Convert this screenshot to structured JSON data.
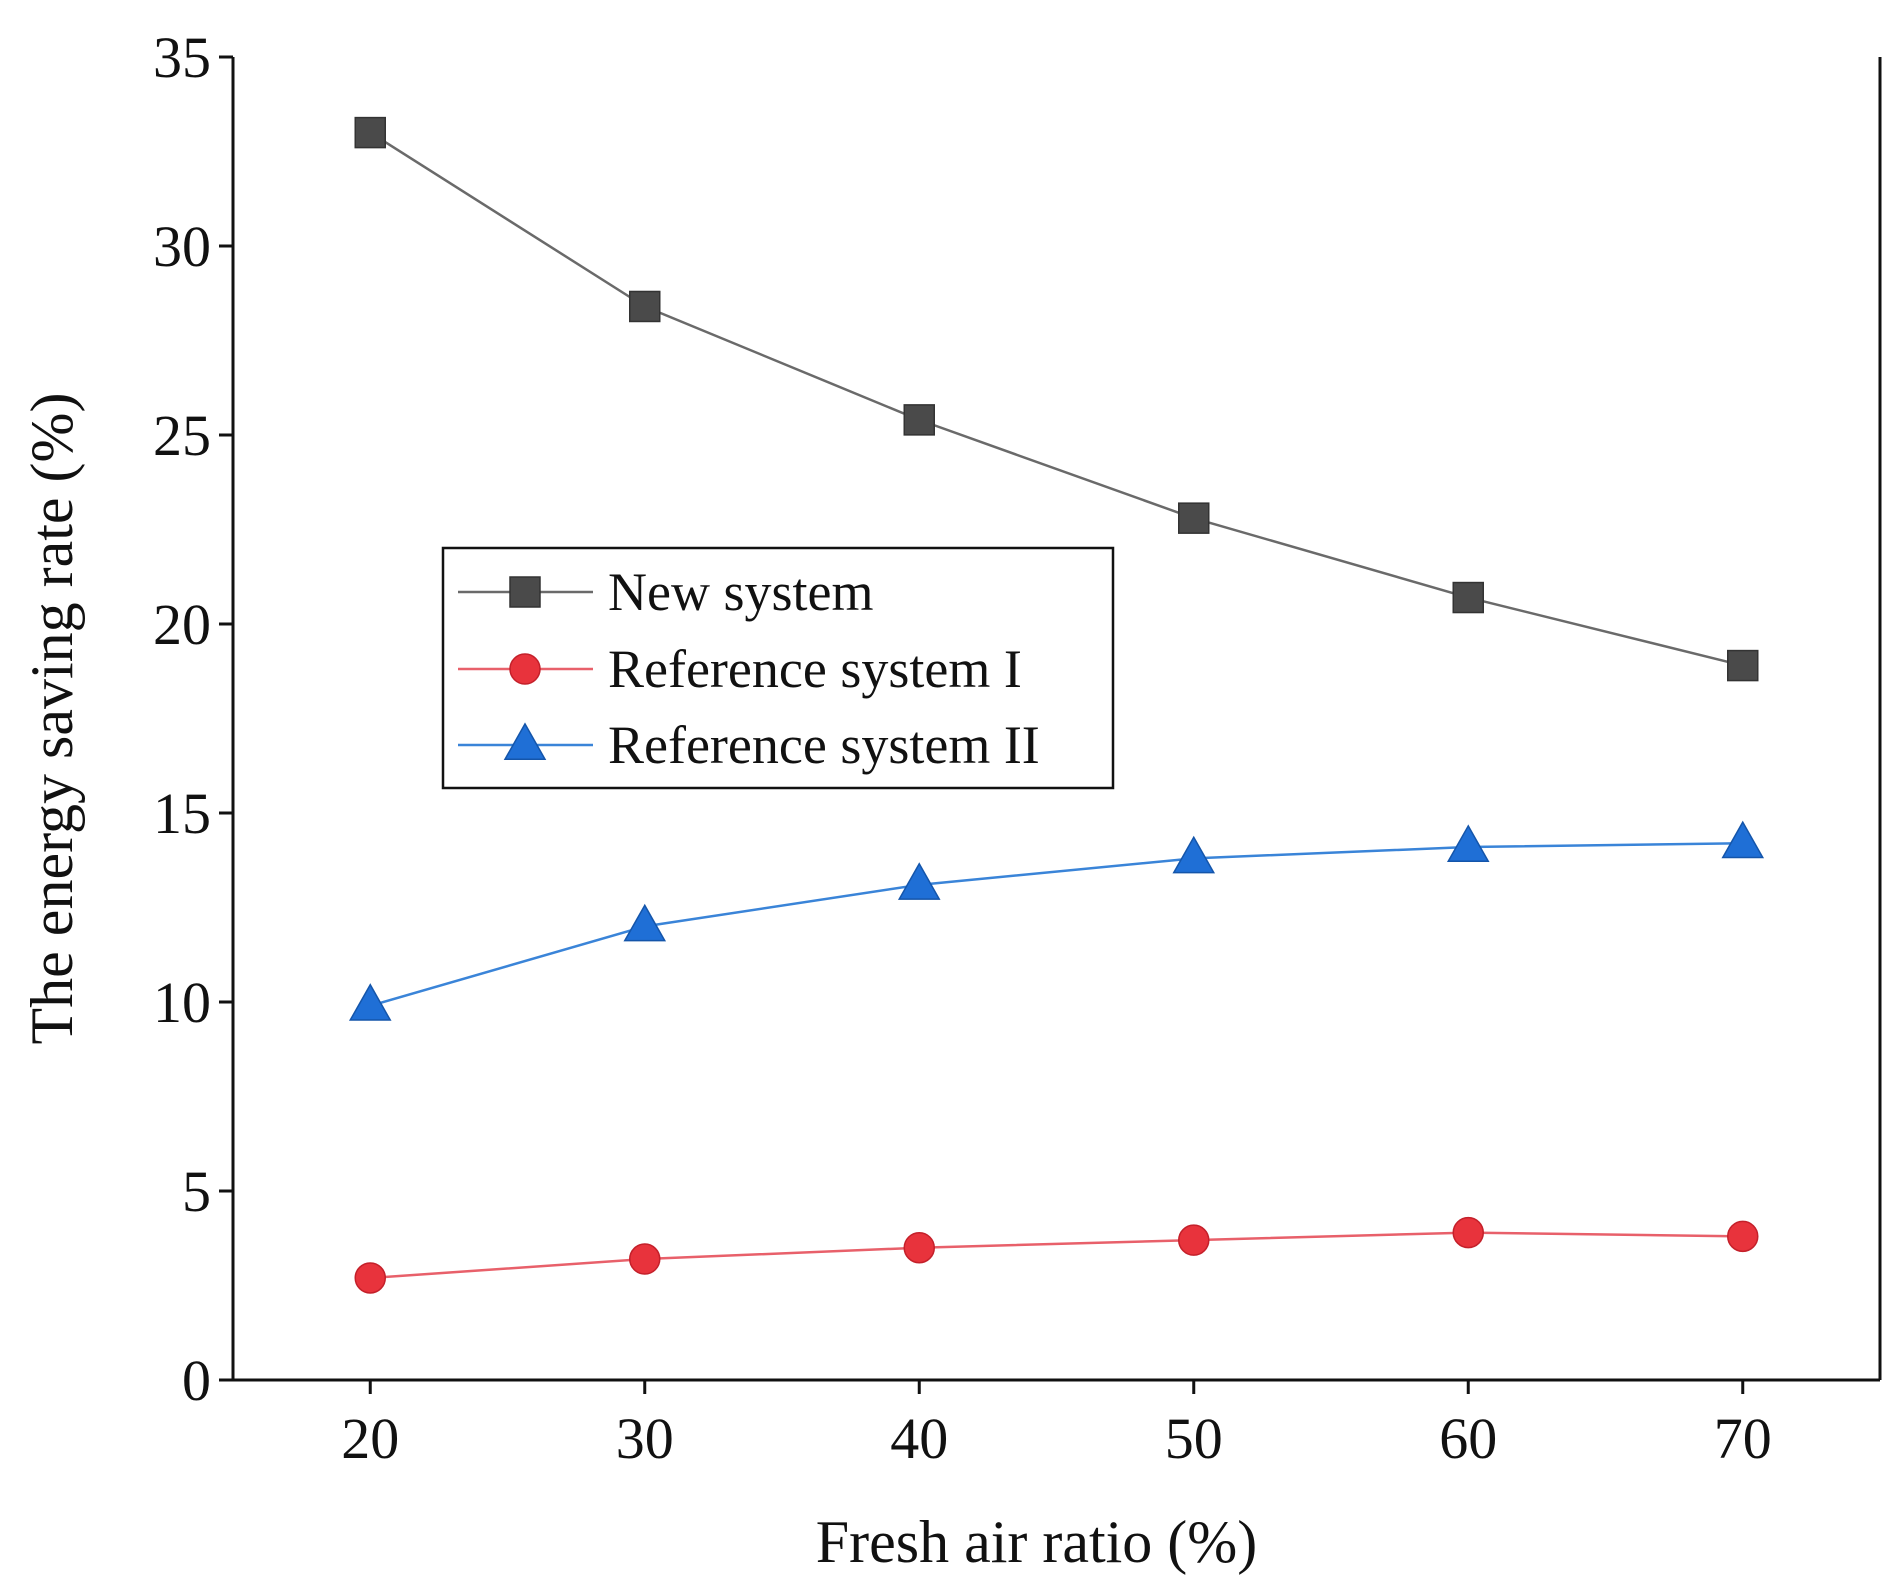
{
  "chart_data": {
    "type": "line",
    "title": "",
    "xlabel": "Fresh air ratio (%)",
    "ylabel": "The energy saving rate (%)",
    "x": [
      20,
      30,
      40,
      50,
      60,
      70
    ],
    "xlim": [
      15,
      75
    ],
    "ylim": [
      0,
      35
    ],
    "xticks": [
      20,
      30,
      40,
      50,
      60,
      70
    ],
    "yticks": [
      0,
      5,
      10,
      15,
      20,
      25,
      30,
      35
    ],
    "grid": false,
    "legend_position": "center-left",
    "series": [
      {
        "name": "New system",
        "marker": "square",
        "color": "#4a4a4a",
        "line_color": "#6a6a6a",
        "values": [
          33.0,
          28.4,
          25.4,
          22.8,
          20.7,
          18.9
        ]
      },
      {
        "name": "Reference system I",
        "marker": "circle",
        "color": "#e8333c",
        "line_color": "#e8606a",
        "values": [
          2.7,
          3.2,
          3.5,
          3.7,
          3.9,
          3.8
        ]
      },
      {
        "name": "Reference system II",
        "marker": "triangle",
        "color": "#1f6fd6",
        "line_color": "#3a84d8",
        "values": [
          9.9,
          12.0,
          13.1,
          13.8,
          14.1,
          14.2
        ]
      }
    ]
  }
}
